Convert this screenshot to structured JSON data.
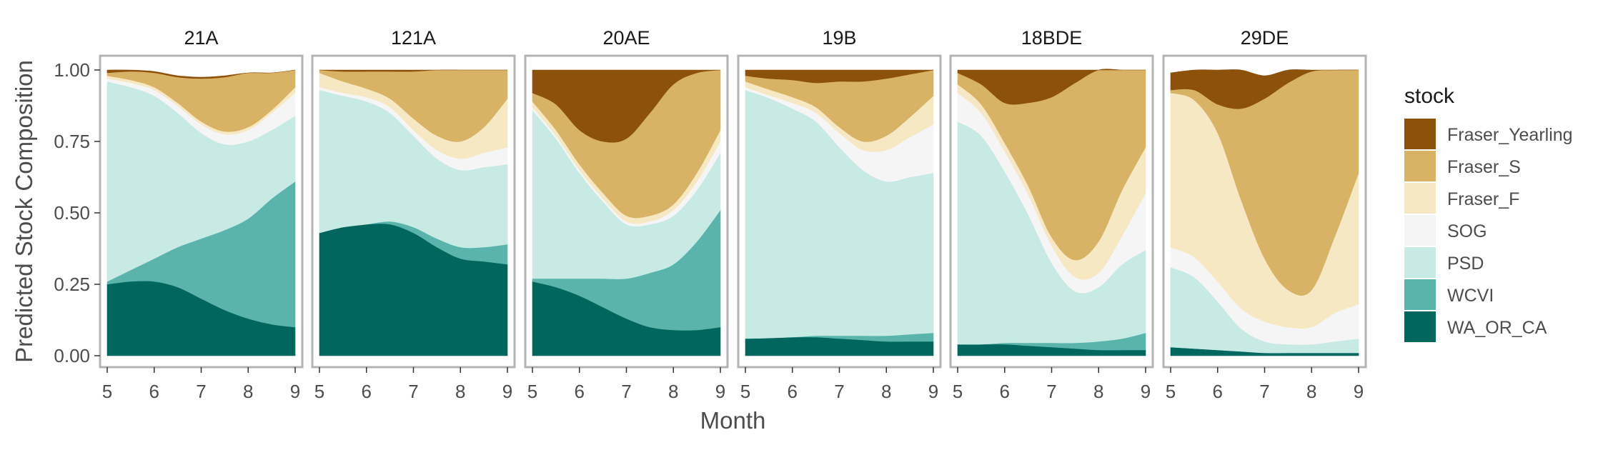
{
  "chart_data": {
    "type": "area",
    "stacked": true,
    "normalized": true,
    "ylabel": "Predicted Stock Composition",
    "xlabel": "Month",
    "x": [
      5,
      5.5,
      6,
      6.5,
      7,
      7.5,
      8,
      8.5,
      9
    ],
    "xlim": [
      5,
      9
    ],
    "xticks": [
      "5",
      "6",
      "7",
      "8",
      "9"
    ],
    "ylim": [
      0,
      1
    ],
    "yticks": [
      "0.00",
      "0.25",
      "0.50",
      "0.75",
      "1.00"
    ],
    "legend": {
      "title": "stock",
      "position": "right",
      "entries": [
        "Fraser_Yearling",
        "Fraser_S",
        "Fraser_F",
        "SOG",
        "PSD",
        "WCVI",
        "WA_OR_CA"
      ]
    },
    "colors": {
      "WA_OR_CA": "#01665e",
      "WCVI": "#5ab4ac",
      "PSD": "#c7eae5",
      "SOG": "#f5f5f5",
      "Fraser_F": "#f6e8c3",
      "Fraser_S": "#d8b365",
      "Fraser_Yearling": "#8c510a"
    },
    "stack_order": [
      "WA_OR_CA",
      "WCVI",
      "PSD",
      "SOG",
      "Fraser_F",
      "Fraser_S",
      "Fraser_Yearling"
    ],
    "panels": [
      {
        "name": "21A",
        "series": [
          {
            "name": "WA_OR_CA",
            "values": [
              0.25,
              0.26,
              0.26,
              0.24,
              0.2,
              0.16,
              0.13,
              0.11,
              0.1
            ]
          },
          {
            "name": "WCVI",
            "values": [
              0.01,
              0.04,
              0.08,
              0.14,
              0.21,
              0.28,
              0.35,
              0.44,
              0.51
            ]
          },
          {
            "name": "PSD",
            "values": [
              0.7,
              0.64,
              0.57,
              0.47,
              0.37,
              0.3,
              0.27,
              0.24,
              0.23
            ]
          },
          {
            "name": "SOG",
            "values": [
              0.01,
              0.015,
              0.02,
              0.025,
              0.03,
              0.035,
              0.04,
              0.06,
              0.08
            ]
          },
          {
            "name": "Fraser_F",
            "values": [
              0.01,
              0.01,
              0.01,
              0.01,
              0.01,
              0.01,
              0.01,
              0.01,
              0.02
            ]
          },
          {
            "name": "Fraser_S",
            "values": [
              0.01,
              0.03,
              0.05,
              0.09,
              0.15,
              0.19,
              0.19,
              0.13,
              0.06
            ]
          },
          {
            "name": "Fraser_Yearling",
            "values": [
              0.01,
              0.005,
              0.005,
              0.005,
              0.005,
              0.005,
              0.0,
              0.0,
              0.0
            ]
          }
        ]
      },
      {
        "name": "121A",
        "series": [
          {
            "name": "WA_OR_CA",
            "values": [
              0.43,
              0.45,
              0.46,
              0.46,
              0.43,
              0.38,
              0.34,
              0.33,
              0.32
            ]
          },
          {
            "name": "WCVI",
            "values": [
              0.0,
              0.0,
              0.0,
              0.01,
              0.02,
              0.03,
              0.04,
              0.05,
              0.07
            ]
          },
          {
            "name": "PSD",
            "values": [
              0.5,
              0.46,
              0.43,
              0.38,
              0.32,
              0.28,
              0.27,
              0.28,
              0.28
            ]
          },
          {
            "name": "SOG",
            "values": [
              0.01,
              0.01,
              0.015,
              0.02,
              0.02,
              0.03,
              0.04,
              0.05,
              0.06
            ]
          },
          {
            "name": "Fraser_F",
            "values": [
              0.05,
              0.04,
              0.03,
              0.03,
              0.04,
              0.05,
              0.06,
              0.09,
              0.17
            ]
          },
          {
            "name": "Fraser_S",
            "values": [
              0.01,
              0.035,
              0.06,
              0.095,
              0.165,
              0.235,
              0.25,
              0.2,
              0.1
            ]
          },
          {
            "name": "Fraser_Yearling",
            "values": [
              0.0,
              0.005,
              0.005,
              0.005,
              0.005,
              0.005,
              0.0,
              0.0,
              0.0
            ]
          }
        ]
      },
      {
        "name": "20AE",
        "series": [
          {
            "name": "WA_OR_CA",
            "values": [
              0.26,
              0.24,
              0.21,
              0.17,
              0.13,
              0.1,
              0.09,
              0.09,
              0.1
            ]
          },
          {
            "name": "WCVI",
            "values": [
              0.01,
              0.03,
              0.06,
              0.1,
              0.14,
              0.19,
              0.23,
              0.31,
              0.41
            ]
          },
          {
            "name": "PSD",
            "values": [
              0.59,
              0.49,
              0.37,
              0.27,
              0.19,
              0.17,
              0.17,
              0.18,
              0.2
            ]
          },
          {
            "name": "SOG",
            "values": [
              0.01,
              0.01,
              0.01,
              0.01,
              0.01,
              0.01,
              0.02,
              0.03,
              0.04
            ]
          },
          {
            "name": "Fraser_F",
            "values": [
              0.02,
              0.02,
              0.02,
              0.02,
              0.02,
              0.02,
              0.02,
              0.03,
              0.04
            ]
          },
          {
            "name": "Fraser_S",
            "values": [
              0.03,
              0.09,
              0.12,
              0.18,
              0.27,
              0.36,
              0.42,
              0.35,
              0.21
            ]
          },
          {
            "name": "Fraser_Yearling",
            "values": [
              0.08,
              0.12,
              0.21,
              0.25,
              0.24,
              0.15,
              0.05,
              0.01,
              0.0
            ]
          }
        ]
      },
      {
        "name": "19B",
        "series": [
          {
            "name": "WA_OR_CA",
            "values": [
              0.06,
              0.062,
              0.065,
              0.065,
              0.06,
              0.055,
              0.05,
              0.05,
              0.05
            ]
          },
          {
            "name": "WCVI",
            "values": [
              0.0,
              0.0,
              0.0,
              0.005,
              0.01,
              0.015,
              0.02,
              0.025,
              0.03
            ]
          },
          {
            "name": "PSD",
            "values": [
              0.87,
              0.84,
              0.8,
              0.75,
              0.66,
              0.58,
              0.54,
              0.55,
              0.56
            ]
          },
          {
            "name": "SOG",
            "values": [
              0.01,
              0.01,
              0.02,
              0.03,
              0.05,
              0.07,
              0.11,
              0.14,
              0.17
            ]
          },
          {
            "name": "Fraser_F",
            "values": [
              0.02,
              0.02,
              0.02,
              0.02,
              0.02,
              0.03,
              0.05,
              0.07,
              0.1
            ]
          },
          {
            "name": "Fraser_S",
            "values": [
              0.02,
              0.038,
              0.06,
              0.085,
              0.16,
              0.21,
              0.2,
              0.15,
              0.09
            ]
          },
          {
            "name": "Fraser_Yearling",
            "values": [
              0.02,
              0.03,
              0.035,
              0.045,
              0.04,
              0.04,
              0.03,
              0.015,
              0.0
            ]
          }
        ]
      },
      {
        "name": "18BDE",
        "series": [
          {
            "name": "WA_OR_CA",
            "values": [
              0.04,
              0.04,
              0.04,
              0.035,
              0.03,
              0.025,
              0.02,
              0.02,
              0.02
            ]
          },
          {
            "name": "WCVI",
            "values": [
              0.0,
              0.0,
              0.005,
              0.01,
              0.015,
              0.02,
              0.03,
              0.04,
              0.06
            ]
          },
          {
            "name": "PSD",
            "values": [
              0.78,
              0.73,
              0.6,
              0.45,
              0.28,
              0.18,
              0.19,
              0.26,
              0.29
            ]
          },
          {
            "name": "SOG",
            "values": [
              0.1,
              0.08,
              0.07,
              0.07,
              0.06,
              0.05,
              0.05,
              0.1,
              0.2
            ]
          },
          {
            "name": "Fraser_F",
            "values": [
              0.03,
              0.03,
              0.03,
              0.03,
              0.03,
              0.06,
              0.11,
              0.16,
              0.16
            ]
          },
          {
            "name": "Fraser_S",
            "values": [
              0.04,
              0.07,
              0.14,
              0.29,
              0.49,
              0.62,
              0.6,
              0.48,
              0.27
            ]
          },
          {
            "name": "Fraser_Yearling",
            "values": [
              0.01,
              0.05,
              0.115,
              0.115,
              0.095,
              0.045,
              0.0,
              0.0,
              0.0
            ]
          }
        ]
      },
      {
        "name": "29DE",
        "series": [
          {
            "name": "WA_OR_CA",
            "values": [
              0.03,
              0.025,
              0.02,
              0.015,
              0.01,
              0.01,
              0.01,
              0.01,
              0.01
            ]
          },
          {
            "name": "WCVI",
            "values": [
              0.0,
              0.0,
              0.0,
              0.0,
              0.0,
              0.0,
              0.0,
              0.0,
              0.0
            ]
          },
          {
            "name": "PSD",
            "values": [
              0.28,
              0.25,
              0.17,
              0.08,
              0.04,
              0.03,
              0.03,
              0.04,
              0.05
            ]
          },
          {
            "name": "SOG",
            "values": [
              0.07,
              0.07,
              0.07,
              0.07,
              0.07,
              0.06,
              0.06,
              0.1,
              0.12
            ]
          },
          {
            "name": "Fraser_F",
            "values": [
              0.54,
              0.55,
              0.52,
              0.38,
              0.22,
              0.13,
              0.13,
              0.27,
              0.46
            ]
          },
          {
            "name": "Fraser_S",
            "values": [
              0.01,
              0.035,
              0.1,
              0.32,
              0.56,
              0.725,
              0.765,
              0.58,
              0.36
            ]
          },
          {
            "name": "Fraser_Yearling",
            "values": [
              0.06,
              0.07,
              0.12,
              0.135,
              0.08,
              0.045,
              0.005,
              0.0,
              0.0
            ]
          }
        ]
      }
    ]
  }
}
